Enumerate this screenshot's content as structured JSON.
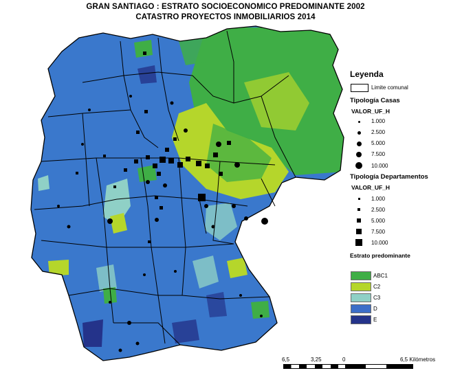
{
  "title": {
    "line1": "GRAN SANTIAGO : ESTRATO SOCIOECONOMICO PREDOMINANTE 2002",
    "line2": "CATASTRO PROYECTOS INMOBILIARIOS 2014"
  },
  "legend": {
    "heading": "Leyenda",
    "boundary": "Limite comunal",
    "casas": {
      "heading": "Tipología Casas",
      "field": "VALOR_UF_H",
      "values": [
        "1.000",
        "2.500",
        "5.000",
        "7.500",
        "10.000"
      ]
    },
    "departamentos": {
      "heading": "Tipología Departamentos",
      "field": "VALOR_UF_H",
      "values": [
        "1.000",
        "2.500",
        "5.000",
        "7.500",
        "10.000"
      ]
    },
    "estrato": {
      "heading": "Estrato predominante",
      "classes": [
        {
          "label": "ABC1",
          "color": "#3fae46"
        },
        {
          "label": "C2",
          "color": "#b5d62b"
        },
        {
          "label": "C3",
          "color": "#8fd0c6"
        },
        {
          "label": "D",
          "color": "#3c6ec8"
        },
        {
          "label": "E",
          "color": "#24338a"
        }
      ]
    }
  },
  "scalebar": {
    "labels": [
      "6,5",
      "3,25",
      "0",
      "6,5 Kilómetros"
    ]
  }
}
